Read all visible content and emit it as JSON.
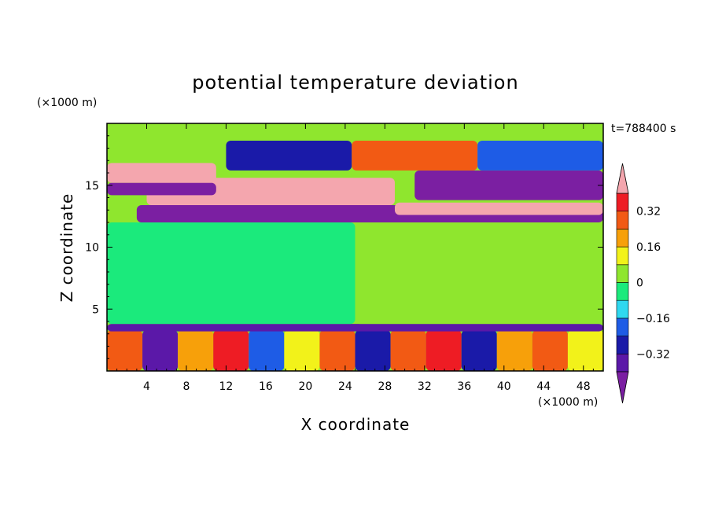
{
  "chart_data": {
    "type": "heatmap",
    "title": "potential temperature deviation",
    "xlabel": "X coordinate",
    "ylabel": "Z coordinate",
    "x_unit": "(×1000 m)",
    "y_unit": "(×1000 m)",
    "time_label": "t=788400 s",
    "xlim": [
      0,
      50
    ],
    "ylim": [
      0,
      20
    ],
    "x_ticks": [
      4,
      8,
      12,
      16,
      20,
      24,
      28,
      32,
      36,
      40,
      44,
      48
    ],
    "y_ticks": [
      5,
      10,
      15
    ],
    "colorbar": {
      "levels_low_to_high": [
        {
          "min": null,
          "max": -0.4,
          "color": "#7b1fa2"
        },
        {
          "min": -0.4,
          "max": -0.32,
          "color": "#5b18a8"
        },
        {
          "min": -0.32,
          "max": -0.24,
          "color": "#1a1aa8"
        },
        {
          "min": -0.24,
          "max": -0.16,
          "color": "#1e5ce6"
        },
        {
          "min": -0.16,
          "max": -0.08,
          "color": "#2fd8f0"
        },
        {
          "min": -0.08,
          "max": 0,
          "color": "#1bea7c"
        },
        {
          "min": 0,
          "max": 0.08,
          "color": "#8fe62e"
        },
        {
          "min": 0.08,
          "max": 0.16,
          "color": "#f2f21a"
        },
        {
          "min": 0.16,
          "max": 0.24,
          "color": "#f7a00a"
        },
        {
          "min": 0.24,
          "max": 0.32,
          "color": "#f25a14"
        },
        {
          "min": 0.32,
          "max": 0.4,
          "color": "#ee1c24"
        },
        {
          "min": 0.4,
          "max": null,
          "color": "#f4a6ae"
        }
      ],
      "tick_labels": [
        {
          "value": 0.32,
          "label": "0.32"
        },
        {
          "value": 0.16,
          "label": "0.16"
        },
        {
          "value": 0,
          "label": "0"
        },
        {
          "value": -0.16,
          "label": "−0.16"
        },
        {
          "value": -0.32,
          "label": "−0.32"
        }
      ]
    },
    "field": {
      "background_value": 0.04,
      "layers": [
        {
          "name_role": "boundary-layer",
          "z_range": [
            0,
            3.3
          ],
          "x_range": [
            0,
            50
          ],
          "values": [
            0.28,
            -0.36,
            0.2,
            0.36,
            -0.2,
            0.12,
            0.3,
            -0.3,
            0.24,
            0.34,
            -0.28,
            0.2,
            0.3,
            0.1
          ]
        },
        {
          "name_role": "boundary-top",
          "z_range": [
            3.2,
            3.8
          ],
          "x_range": [
            0,
            50
          ],
          "values": [
            -0.34
          ]
        },
        {
          "name_role": "mid-neutral",
          "z_range": [
            3.8,
            12
          ],
          "x_range": [
            0,
            50
          ],
          "values": [
            -0.04,
            0.04
          ]
        },
        {
          "name_role": "lower-cold-band",
          "z_range": [
            12,
            13.4
          ],
          "x_range": [
            3,
            50
          ],
          "values": [
            -0.42
          ]
        },
        {
          "name_role": "lower-warm-band",
          "z_range": [
            12.6,
            13.6
          ],
          "x_range": [
            29,
            50
          ],
          "values": [
            0.44
          ]
        },
        {
          "name_role": "warm-layer",
          "z_range": [
            13.4,
            15.6
          ],
          "x_range": [
            4,
            29
          ],
          "values": [
            0.44
          ]
        },
        {
          "name_role": "upper-cold-band",
          "z_range": [
            13.8,
            16.2
          ],
          "x_range": [
            31,
            50
          ],
          "values": [
            -0.44
          ]
        },
        {
          "name_role": "left-cold-band",
          "z_range": [
            14.2,
            15.2
          ],
          "x_range": [
            0,
            11
          ],
          "values": [
            -0.44
          ]
        },
        {
          "name_role": "left-warm-band",
          "z_range": [
            15.2,
            16.8
          ],
          "x_range": [
            0,
            11
          ],
          "values": [
            0.44
          ]
        },
        {
          "name_role": "top-blobs",
          "z_range": [
            16.2,
            18.6
          ],
          "x_range": [
            12,
            50
          ],
          "values": [
            -0.3,
            0.3,
            -0.2
          ]
        }
      ]
    }
  }
}
